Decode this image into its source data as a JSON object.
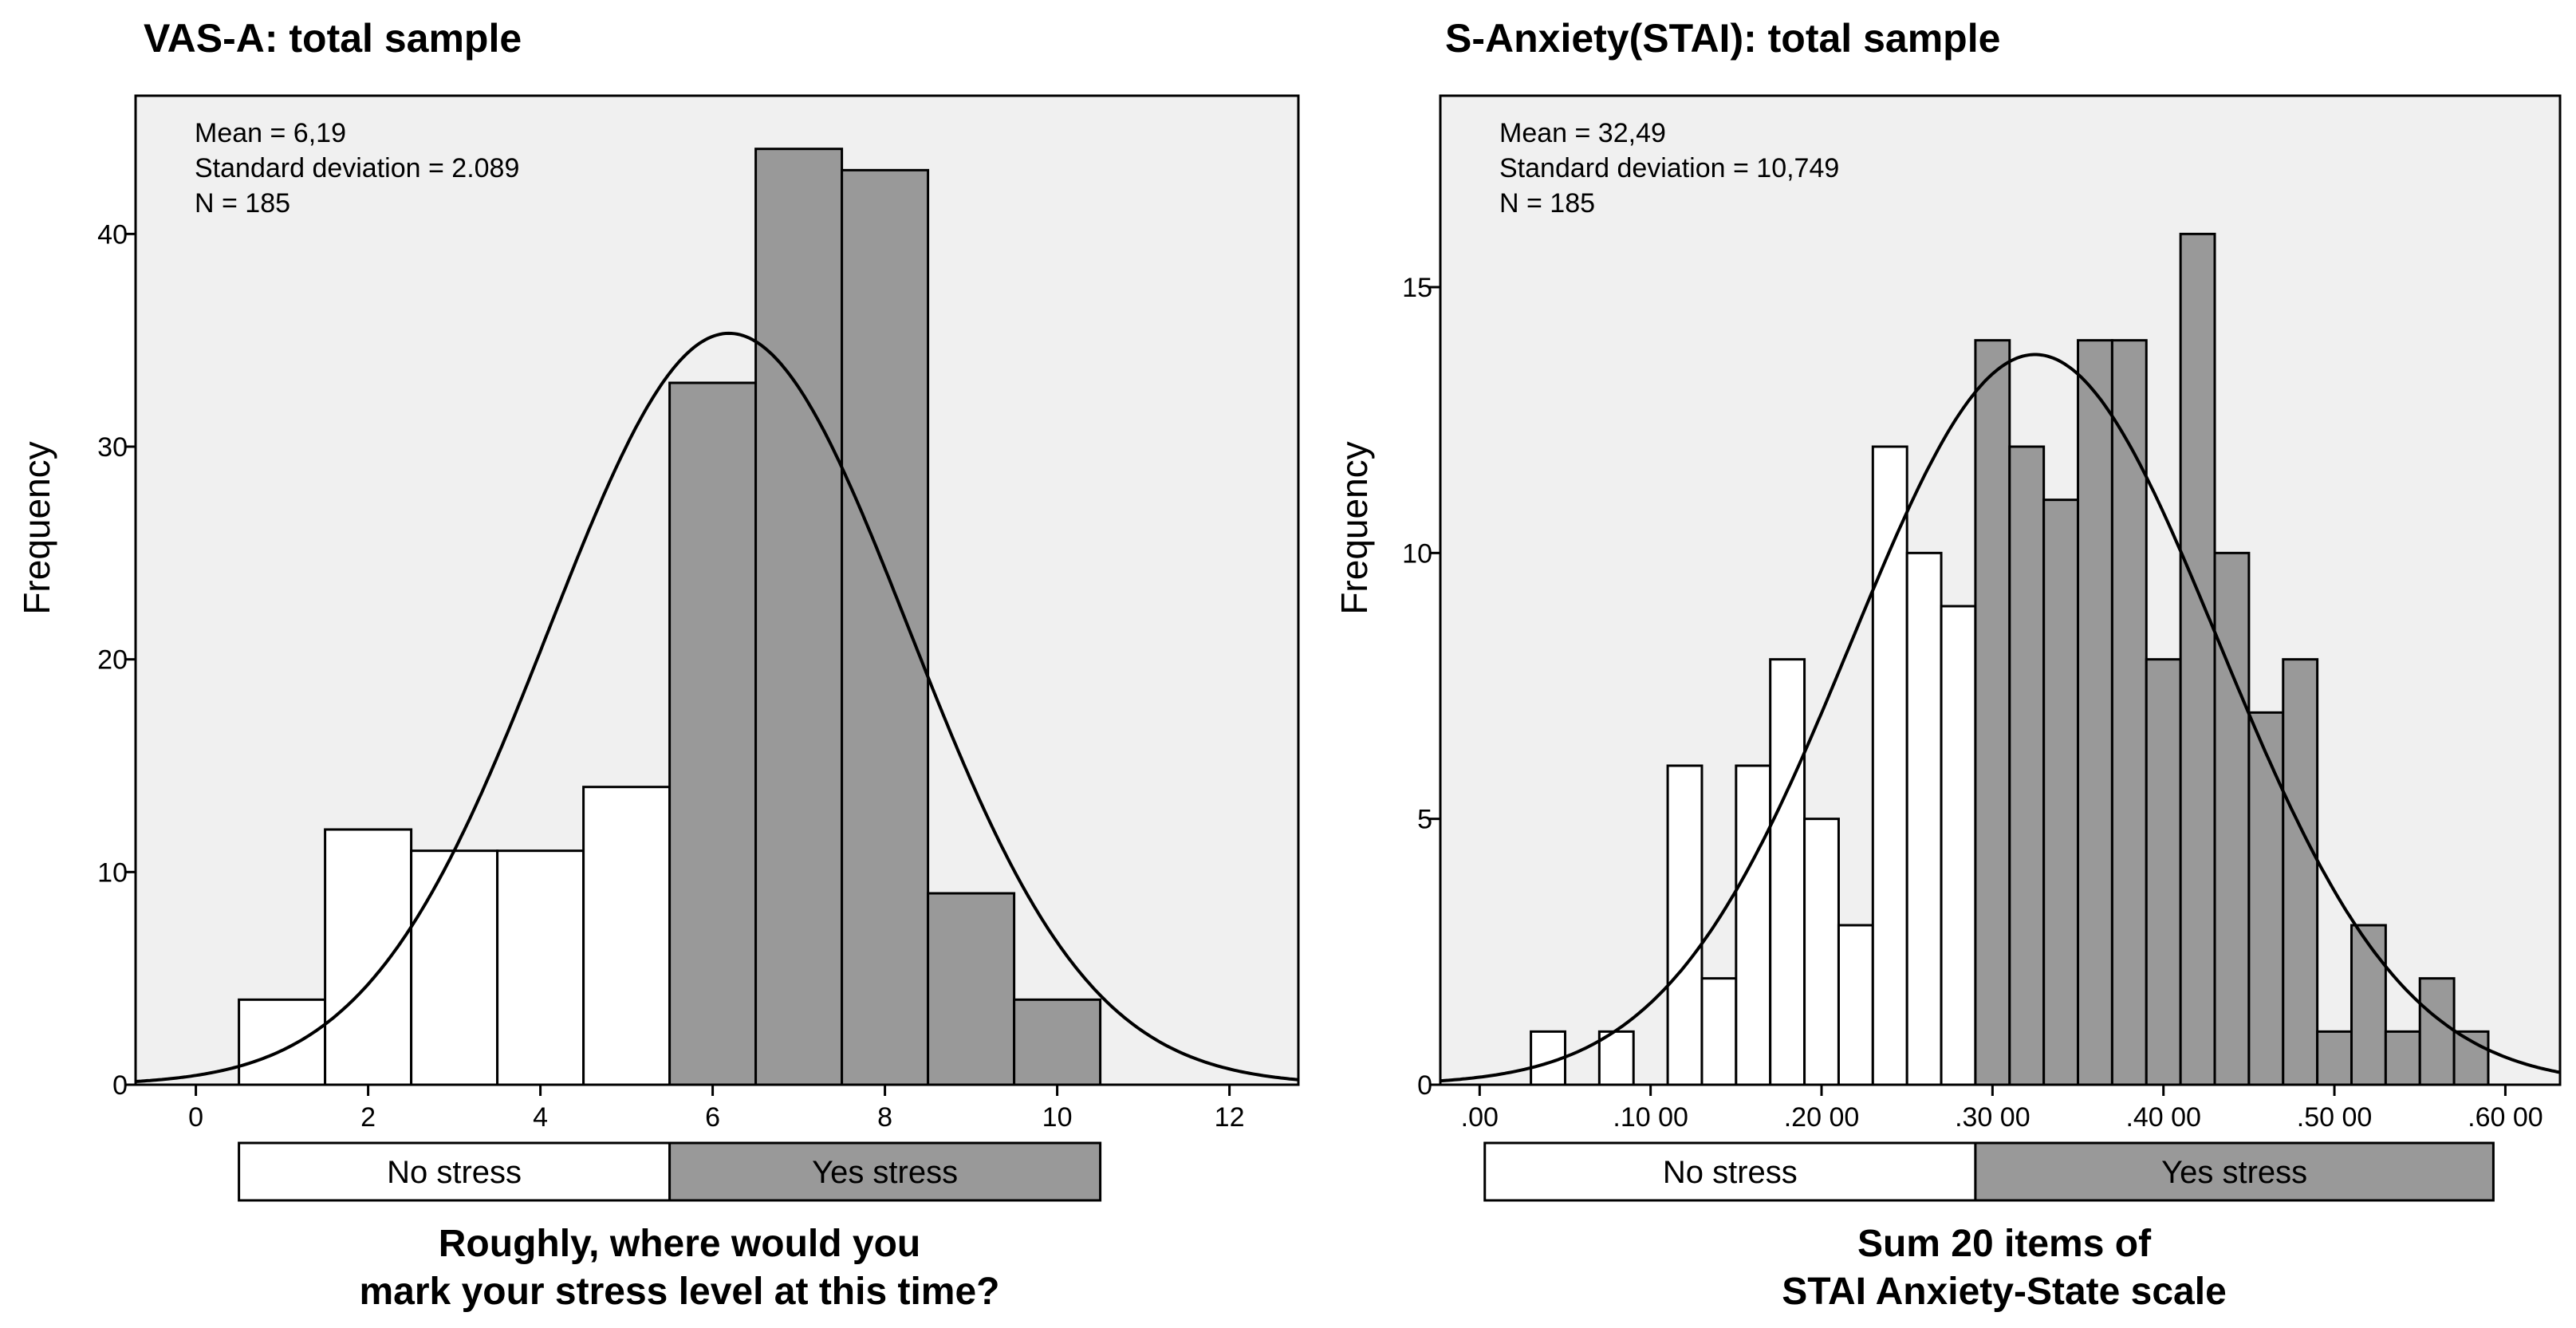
{
  "chart_data": [
    {
      "type": "bar",
      "title": "VAS-A: total sample",
      "stats": [
        "Mean = 6,19",
        "Standard deviation = 2.089",
        "N = 185"
      ],
      "ylabel": "Frequency",
      "xlabel_lines": [
        "Roughly, where would you",
        "mark your stress level at this time?"
      ],
      "xlim": [
        -0.7,
        12.8
      ],
      "ylim": [
        0,
        46.5
      ],
      "x_ticks": [
        0,
        2,
        4,
        6,
        8,
        10,
        12
      ],
      "x_tick_labels": [
        "0",
        "2",
        "4",
        "6",
        "8",
        "10",
        "12"
      ],
      "y_ticks": [
        0,
        10,
        20,
        30,
        40
      ],
      "y_tick_labels": [
        "0",
        "10",
        "20",
        "30",
        "40"
      ],
      "bin_width": 1,
      "bin_centers": [
        1,
        2,
        3,
        4,
        5,
        6,
        7,
        8,
        9,
        10
      ],
      "values": [
        4,
        12,
        11,
        11,
        14,
        33,
        44,
        43,
        9,
        4
      ],
      "groups": [
        "No stress",
        "No stress",
        "No stress",
        "No stress",
        "No stress",
        "Yes stress",
        "Yes stress",
        "Yes stress",
        "Yes stress",
        "Yes stress"
      ],
      "normal_curve": {
        "mean": 6.19,
        "sd": 2.089,
        "n": 185
      },
      "legend": {
        "items": [
          {
            "label": "No stress",
            "x_from": 0.5,
            "x_to": 5.5,
            "color": "#ffffff"
          },
          {
            "label": "Yes stress",
            "x_from": 5.5,
            "x_to": 10.5,
            "color": "#999999"
          }
        ]
      }
    },
    {
      "type": "bar",
      "title": "S-Anxiety(STAI): total sample",
      "stats": [
        "Mean = 32,49",
        "Standard deviation = 10,749",
        "N = 185"
      ],
      "ylabel": "Frequency",
      "xlabel_lines": [
        "Sum 20 items of",
        "STAI Anxiety-State scale"
      ],
      "xlim": [
        -2.3,
        63.2
      ],
      "ylim": [
        0,
        18.6
      ],
      "x_ticks": [
        0,
        10,
        20,
        30,
        40,
        50,
        60
      ],
      "x_tick_labels": [
        ".00",
        ".10 00",
        ".20 00",
        ".30 00",
        ".40 00",
        ".50 00",
        ".60 00"
      ],
      "y_ticks": [
        0,
        5,
        10,
        15
      ],
      "y_tick_labels": [
        "0",
        "5",
        "10",
        "15"
      ],
      "bin_width": 2,
      "bin_centers": [
        4,
        6,
        8,
        10,
        12,
        14,
        16,
        18,
        20,
        22,
        24,
        26,
        28,
        30,
        32,
        34,
        36,
        38,
        40,
        42,
        44,
        46,
        48,
        50,
        52,
        54,
        56,
        58
      ],
      "values": [
        1,
        0,
        1,
        0,
        6,
        2,
        6,
        8,
        5,
        3,
        12,
        10,
        9,
        14,
        12,
        11,
        14,
        14,
        8,
        16,
        10,
        7,
        8,
        1,
        3,
        1,
        2,
        1
      ],
      "groups": [
        "No stress",
        "No stress",
        "No stress",
        "No stress",
        "No stress",
        "No stress",
        "No stress",
        "No stress",
        "No stress",
        "No stress",
        "No stress",
        "No stress",
        "No stress",
        "Yes stress",
        "Yes stress",
        "Yes stress",
        "Yes stress",
        "Yes stress",
        "Yes stress",
        "Yes stress",
        "Yes stress",
        "Yes stress",
        "Yes stress",
        "Yes stress",
        "Yes stress",
        "Yes stress",
        "Yes stress",
        "Yes stress"
      ],
      "normal_curve": {
        "mean": 32.49,
        "sd": 10.749,
        "n": 185
      },
      "legend": {
        "items": [
          {
            "label": "No stress",
            "x_from": 0.3,
            "x_to": 29,
            "color": "#ffffff"
          },
          {
            "label": "Yes stress",
            "x_from": 29,
            "x_to": 59.3,
            "color": "#999999"
          }
        ]
      }
    }
  ],
  "colors": {
    "plot_background": "#f0f0f0",
    "no_stress": "#ffffff",
    "yes_stress": "#999999",
    "stroke": "#000000"
  }
}
